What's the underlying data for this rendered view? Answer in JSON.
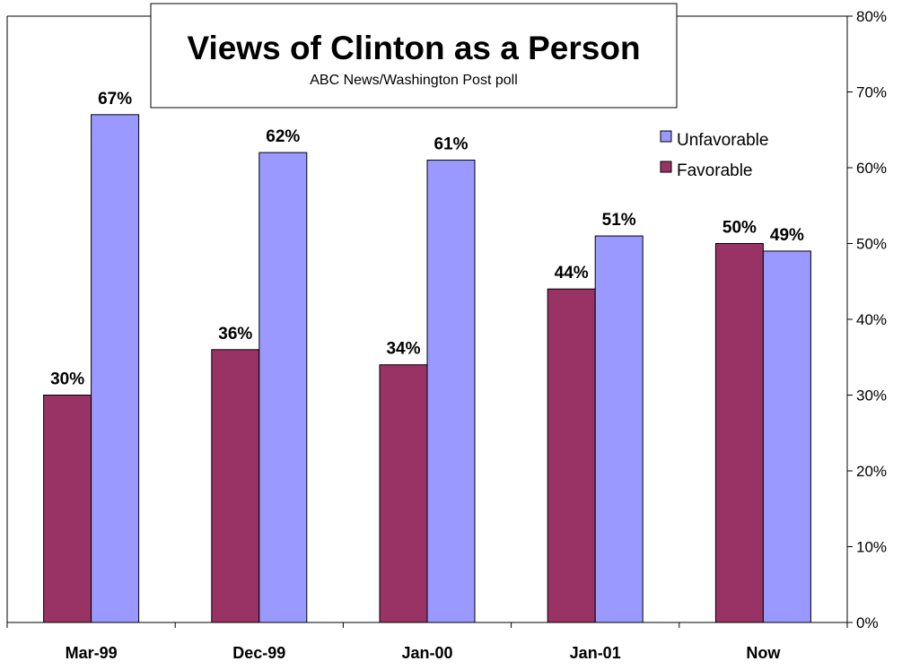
{
  "chart_data": {
    "type": "bar",
    "title": "Views of Clinton as a Person",
    "subtitle": "ABC News/Washington Post poll",
    "categories": [
      "Mar-99",
      "Dec-99",
      "Jan-00",
      "Jan-01",
      "Now"
    ],
    "series": [
      {
        "name": "Favorable",
        "values": [
          30,
          36,
          34,
          44,
          50
        ],
        "color": "#993366",
        "labels": [
          "30%",
          "36%",
          "34%",
          "44%",
          "50%"
        ]
      },
      {
        "name": "Unfavorable",
        "values": [
          67,
          62,
          61,
          51,
          49
        ],
        "color": "#9999FF",
        "labels": [
          "67%",
          "62%",
          "61%",
          "51%",
          "49%"
        ]
      }
    ],
    "ylim": [
      0,
      80
    ],
    "yticks": [
      "0%",
      "10%",
      "20%",
      "30%",
      "40%",
      "50%",
      "60%",
      "70%",
      "80%"
    ],
    "y_axis_side": "right",
    "grid": false,
    "legend": {
      "placement": "top-right",
      "entries": [
        "Unfavorable",
        "Favorable"
      ]
    }
  }
}
